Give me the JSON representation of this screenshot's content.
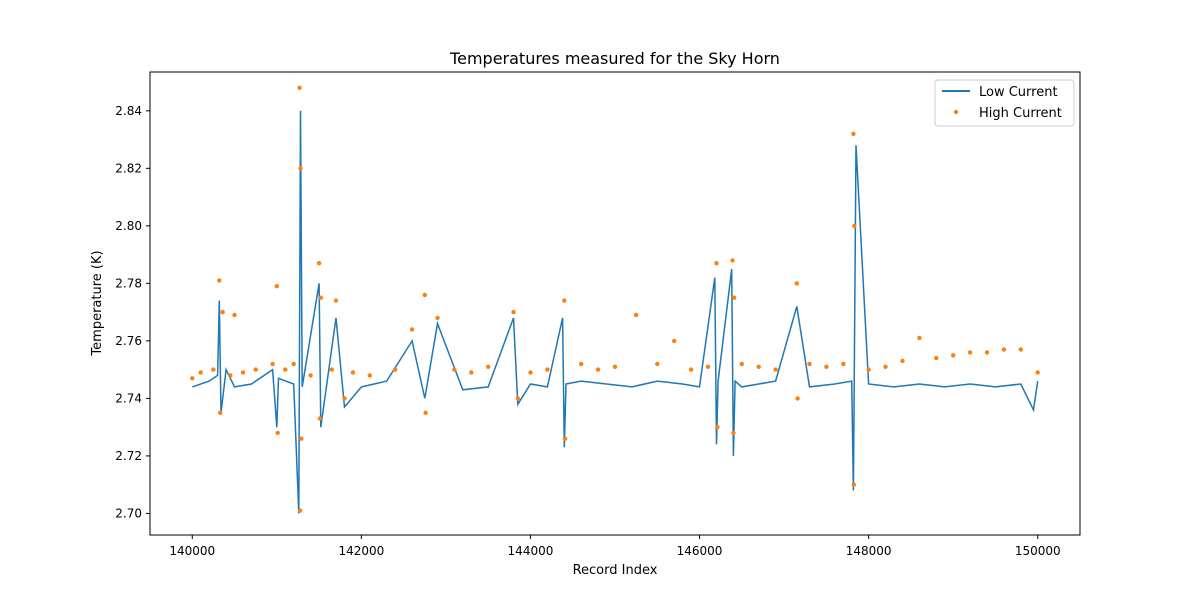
{
  "chart_data": {
    "type": "line",
    "title": "Temperatures measured for the Sky Horn",
    "xlabel": "Record Index",
    "ylabel": "Temperature (K)",
    "xlim": [
      139500,
      150500
    ],
    "ylim": [
      2.6925,
      2.8535
    ],
    "xticks": [
      140000,
      142000,
      144000,
      146000,
      148000,
      150000
    ],
    "yticks": [
      2.7,
      2.72,
      2.74,
      2.76,
      2.78,
      2.8,
      2.82,
      2.84
    ],
    "grid": false,
    "legend_position": "top-right",
    "series": [
      {
        "name": "Low Current",
        "style": "line",
        "color": "#1f77b4",
        "x": [
          140000,
          140200,
          140300,
          140320,
          140340,
          140400,
          140500,
          140700,
          140950,
          141000,
          141020,
          141200,
          141260,
          141280,
          141300,
          141500,
          141520,
          141700,
          141800,
          142000,
          142300,
          142600,
          142750,
          142900,
          143200,
          143500,
          143800,
          143850,
          144000,
          144200,
          144380,
          144400,
          144420,
          144600,
          144900,
          145200,
          145500,
          145800,
          146000,
          146180,
          146200,
          146220,
          146380,
          146400,
          146420,
          146500,
          146700,
          146900,
          147150,
          147300,
          147600,
          147800,
          147820,
          147850,
          148000,
          148300,
          148600,
          148900,
          149200,
          149500,
          149800,
          149950,
          150000
        ],
        "y": [
          2.744,
          2.746,
          2.748,
          2.774,
          2.735,
          2.75,
          2.744,
          2.745,
          2.75,
          2.73,
          2.747,
          2.745,
          2.7,
          2.84,
          2.744,
          2.78,
          2.73,
          2.768,
          2.737,
          2.744,
          2.746,
          2.76,
          2.74,
          2.766,
          2.743,
          2.744,
          2.768,
          2.738,
          2.745,
          2.744,
          2.768,
          2.723,
          2.745,
          2.746,
          2.745,
          2.744,
          2.746,
          2.745,
          2.744,
          2.782,
          2.724,
          2.746,
          2.785,
          2.72,
          2.746,
          2.744,
          2.745,
          2.746,
          2.772,
          2.744,
          2.745,
          2.746,
          2.708,
          2.828,
          2.745,
          2.744,
          2.745,
          2.744,
          2.745,
          2.744,
          2.745,
          2.736,
          2.746
        ]
      },
      {
        "name": "High Current",
        "style": "scatter",
        "color": "#ff7f0e",
        "x": [
          140000,
          140100,
          140250,
          140320,
          140330,
          140360,
          140450,
          140500,
          140600,
          140750,
          140950,
          141000,
          141010,
          141100,
          141200,
          141270,
          141275,
          141280,
          141290,
          141400,
          141500,
          141510,
          141520,
          141650,
          141700,
          141800,
          141900,
          142100,
          142400,
          142600,
          142750,
          142760,
          142900,
          143100,
          143300,
          143500,
          143800,
          143850,
          144000,
          144200,
          144400,
          144410,
          144600,
          144800,
          145000,
          145250,
          145500,
          145700,
          145900,
          146100,
          146200,
          146210,
          146390,
          146400,
          146410,
          146500,
          146700,
          146900,
          147150,
          147160,
          147300,
          147500,
          147700,
          147820,
          147825,
          147830,
          148000,
          148200,
          148400,
          148600,
          148800,
          149000,
          149200,
          149400,
          149600,
          149800,
          150000
        ],
        "y": [
          2.747,
          2.749,
          2.75,
          2.781,
          2.735,
          2.77,
          2.748,
          2.769,
          2.749,
          2.75,
          2.752,
          2.779,
          2.728,
          2.75,
          2.752,
          2.848,
          2.701,
          2.82,
          2.726,
          2.748,
          2.787,
          2.733,
          2.775,
          2.75,
          2.774,
          2.74,
          2.749,
          2.748,
          2.75,
          2.764,
          2.776,
          2.735,
          2.768,
          2.75,
          2.749,
          2.751,
          2.77,
          2.74,
          2.749,
          2.75,
          2.774,
          2.726,
          2.752,
          2.75,
          2.751,
          2.769,
          2.752,
          2.76,
          2.75,
          2.751,
          2.787,
          2.73,
          2.788,
          2.728,
          2.775,
          2.752,
          2.751,
          2.75,
          2.78,
          2.74,
          2.752,
          2.751,
          2.752,
          2.832,
          2.71,
          2.8,
          2.75,
          2.751,
          2.753,
          2.761,
          2.754,
          2.755,
          2.756,
          2.756,
          2.757,
          2.757,
          2.749
        ]
      }
    ]
  }
}
